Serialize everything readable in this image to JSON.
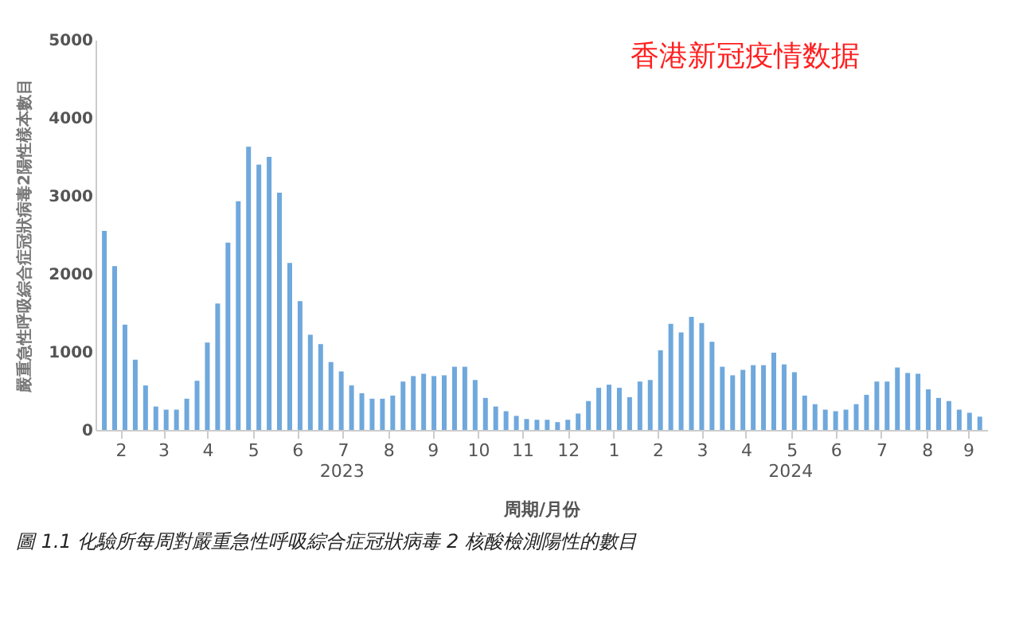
{
  "chart_data": {
    "type": "bar",
    "title": "香港新冠疫情数据",
    "xlabel": "周期/月份",
    "ylabel": "嚴重急性呼吸綜合症冠狀病毒2陽性樣本數目",
    "annotations": [
      "圖 1.1 化驗所每周對嚴重急性呼吸綜合症冠狀病毒 2 核酸檢測陽性的數目"
    ],
    "x": [
      "2023-02-04",
      "2023-02-11",
      "2023-02-18",
      "2023-02-25",
      "2023-03-04",
      "2023-03-11",
      "2023-03-18",
      "2023-03-25",
      "2023-04-01",
      "2023-04-08",
      "2023-04-15",
      "2023-04-22",
      "2023-04-29",
      "2023-05-06",
      "2023-05-13",
      "2023-05-20",
      "2023-05-27",
      "2023-06-03",
      "2023-06-10",
      "2023-06-17",
      "2023-06-24",
      "2023-07-01",
      "2023-07-08",
      "2023-07-15",
      "2023-07-22",
      "2023-07-29",
      "2023-08-05",
      "2023-08-12",
      "2023-08-19",
      "2023-08-26",
      "2023-09-02",
      "2023-09-09",
      "2023-09-16",
      "2023-09-23",
      "2023-09-30",
      "2023-10-07",
      "2023-10-14",
      "2023-10-21",
      "2023-10-28",
      "2023-11-04",
      "2023-11-11",
      "2023-11-18",
      "2023-11-25",
      "2023-12-02",
      "2023-12-09",
      "2023-12-16",
      "2023-12-23",
      "2023-12-30",
      "2024-01-06",
      "2024-01-13",
      "2024-01-20",
      "2024-01-27",
      "2024-02-03",
      "2024-02-10",
      "2024-02-17",
      "2024-02-24",
      "2024-03-02",
      "2024-03-09",
      "2024-03-16",
      "2024-03-23",
      "2024-03-30",
      "2024-04-06",
      "2024-04-13",
      "2024-04-20",
      "2024-04-27",
      "2024-05-04",
      "2024-05-11",
      "2024-05-18",
      "2024-05-25",
      "2024-06-01",
      "2024-06-08",
      "2024-06-15",
      "2024-06-22",
      "2024-06-29",
      "2024-07-06",
      "2024-07-13",
      "2024-07-20",
      "2024-07-27",
      "2024-08-03",
      "2024-08-10",
      "2024-08-17",
      "2024-08-24",
      "2024-08-31",
      "2024-09-07",
      "2024-09-14",
      "2024-09-21"
    ],
    "series": [
      {
        "color": "#6fa8dc",
        "values": [
          2550,
          2100,
          1350,
          900,
          570,
          300,
          260,
          260,
          400,
          630,
          1120,
          1620,
          2400,
          2930,
          3630,
          3400,
          3500,
          3040,
          2140,
          1650,
          1220,
          1100,
          870,
          750,
          570,
          470,
          400,
          400,
          440,
          620,
          690,
          720,
          690,
          700,
          810,
          810,
          640,
          410,
          300,
          240,
          180,
          140,
          130,
          130,
          100,
          130,
          210,
          370,
          540,
          580,
          540,
          420,
          620,
          640,
          1020,
          1360,
          1250,
          1450,
          1370,
          1130,
          810,
          700,
          770,
          830,
          830,
          990,
          840,
          740,
          440,
          330,
          260,
          240,
          260,
          330,
          450,
          620,
          620,
          800,
          730,
          720,
          520,
          410,
          370,
          260,
          220,
          170
        ]
      }
    ],
    "xlim": [
      "2023-01-29",
      "2024-09-26"
    ],
    "xticks": [
      {
        "value": "2023-02-15",
        "label": "2"
      },
      {
        "value": "2023-03-16",
        "label": "3"
      },
      {
        "value": "2023-04-15",
        "label": "4"
      },
      {
        "value": "2023-05-16",
        "label": "5"
      },
      {
        "value": "2023-06-15",
        "label": "6"
      },
      {
        "value": "2023-07-16",
        "label": "7"
      },
      {
        "value": "2023-08-16",
        "label": "8"
      },
      {
        "value": "2023-09-15",
        "label": "9"
      },
      {
        "value": "2023-10-16",
        "label": "10"
      },
      {
        "value": "2023-11-15",
        "label": "11"
      },
      {
        "value": "2023-12-16",
        "label": "12"
      },
      {
        "value": "2024-01-16",
        "label": "1"
      },
      {
        "value": "2024-02-15",
        "label": "2"
      },
      {
        "value": "2024-03-16",
        "label": "3"
      },
      {
        "value": "2024-04-15",
        "label": "4"
      },
      {
        "value": "2024-05-16",
        "label": "5"
      },
      {
        "value": "2024-06-15",
        "label": "6"
      },
      {
        "value": "2024-07-16",
        "label": "7"
      },
      {
        "value": "2024-08-16",
        "label": "8"
      },
      {
        "value": "2024-09-13",
        "label": "9"
      }
    ],
    "x2lim": [
      "2023-01-29",
      "2024-09-26"
    ],
    "x2ticks": [
      {
        "value": "2023-07-15",
        "label": "2023"
      },
      {
        "value": "2024-05-15",
        "label": "2024"
      }
    ],
    "ylim": [
      0,
      5000
    ],
    "yticks": [
      0,
      1000,
      2000,
      3000,
      4000,
      5000
    ],
    "grid": false
  }
}
